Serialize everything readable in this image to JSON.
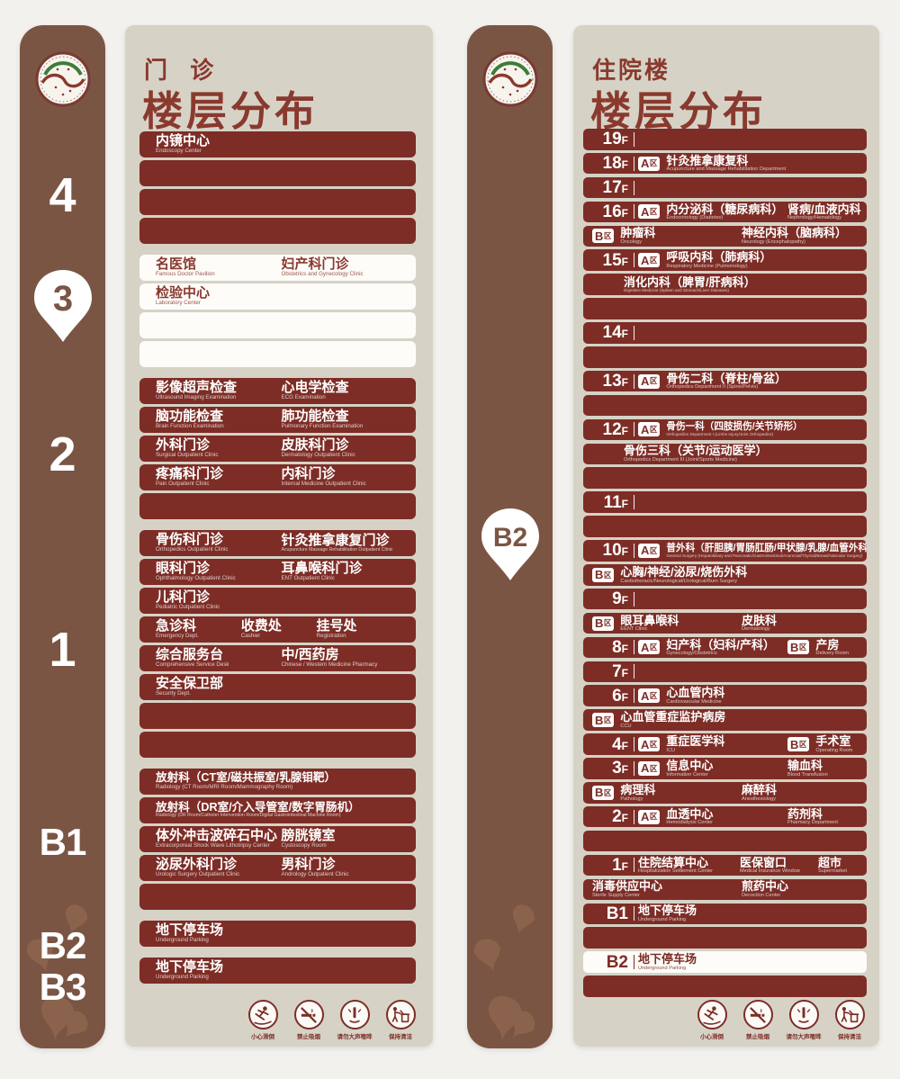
{
  "colors": {
    "maroon_row": "#7d2d26",
    "title_maroon": "#8a392e",
    "sidebar_brown": "#7b5543",
    "board_beige": "#d6d2c6",
    "highlight_row": "#fdfcf8"
  },
  "legend_icons": [
    {
      "icon": "caution-slip-icon",
      "label": "小心滑倒"
    },
    {
      "icon": "no-smoking-icon",
      "label": "禁止吸烟"
    },
    {
      "icon": "quiet-please-icon",
      "label": "请勿大声喧哗"
    },
    {
      "icon": "keep-clean-icon",
      "label": "保持清洁"
    }
  ],
  "panels": [
    {
      "name": "outpatient",
      "title_top": "门 诊",
      "title_main": "楼层分布",
      "sidebar": {
        "floors": [
          {
            "label": "4"
          },
          {
            "label": "3",
            "pin": true
          },
          {
            "label": "2"
          },
          {
            "label": "1"
          },
          {
            "label": "B1"
          },
          {
            "label": "B2"
          },
          {
            "label": "B3"
          }
        ]
      },
      "sections": [
        {
          "floor": "4",
          "style": "dark",
          "rows": [
            {
              "cells": [
                {
                  "zh": "内镜中心",
                  "en": "Endoscopy Center"
                }
              ]
            },
            {
              "cells": []
            },
            {
              "cells": []
            },
            {
              "cells": []
            }
          ]
        },
        {
          "floor": "3",
          "style": "light",
          "rows": [
            {
              "cells": [
                {
                  "zh": "名医馆",
                  "en": "Famous Doctor Pavilion"
                },
                {
                  "zh": "妇产科门诊",
                  "en": "Obstetrics and Gynecology Clinic"
                }
              ]
            },
            {
              "cells": [
                {
                  "zh": "检验中心",
                  "en": "Laboratory Center"
                }
              ]
            },
            {
              "cells": []
            },
            {
              "cells": []
            }
          ]
        },
        {
          "floor": "2",
          "style": "dark",
          "rows": [
            {
              "cells": [
                {
                  "zh": "影像超声检查",
                  "en": "Ultrasound Imaging Examination"
                },
                {
                  "zh": "心电学检查",
                  "en": "ECG Examination"
                }
              ]
            },
            {
              "cells": [
                {
                  "zh": "脑功能检查",
                  "en": "Brain Function Examination"
                },
                {
                  "zh": "肺功能检查",
                  "en": "Pulmonary Function Examination"
                }
              ]
            },
            {
              "cells": [
                {
                  "zh": "外科门诊",
                  "en": "Surgical Outpatient Clinic"
                },
                {
                  "zh": "皮肤科门诊",
                  "en": "Dermatology Outpatient Clinic"
                }
              ]
            },
            {
              "cells": [
                {
                  "zh": "疼痛科门诊",
                  "en": "Pain Outpatient Clinic"
                },
                {
                  "zh": "内科门诊",
                  "en": "Internal Medicine Outpatient Clinic"
                }
              ]
            },
            {
              "cells": []
            }
          ]
        },
        {
          "floor": "1",
          "style": "dark",
          "rows": [
            {
              "cells": [
                {
                  "zh": "骨伤科门诊",
                  "en": "Orthopedics Outpatient Clinic"
                },
                {
                  "zh": "针灸推拿康复门诊",
                  "en": "Acupuncture Massage Rehabilitation Outpatient Clinic"
                }
              ]
            },
            {
              "cells": [
                {
                  "zh": "眼科门诊",
                  "en": "Ophthalmology Outpatient Clinic"
                },
                {
                  "zh": "耳鼻喉科门诊",
                  "en": "ENT Outpatient Clinic"
                }
              ]
            },
            {
              "cells": [
                {
                  "zh": "儿科门诊",
                  "en": "Pediatric Outpatient Clinic"
                }
              ]
            },
            {
              "cells": [
                {
                  "zh": "急诊科",
                  "en": "Emergency Dept."
                },
                {
                  "zh": "收费处",
                  "en": "Cashier"
                },
                {
                  "zh": "挂号处",
                  "en": "Registration"
                }
              ]
            },
            {
              "cells": [
                {
                  "zh": "综合服务台",
                  "en": "Comprehensive Service Desk"
                },
                {
                  "zh": "中/西药房",
                  "en": "Chinese / Western Medicine Pharmacy"
                }
              ]
            },
            {
              "cells": [
                {
                  "zh": "安全保卫部",
                  "en": "Security Dept."
                }
              ]
            },
            {
              "cells": []
            },
            {
              "cells": []
            }
          ]
        },
        {
          "floor": "B1",
          "style": "dark",
          "rows": [
            {
              "cells": [
                {
                  "zh": "放射科（CT室/磁共振室/乳腺钼靶）",
                  "en": "Radiology (CT Room/MRI Room/Mammography Room)"
                }
              ]
            },
            {
              "cells": [
                {
                  "zh": "放射科（DR室/介入导管室/数字胃肠机）",
                  "en": "Radiology (DR Room/Catheter Intervention Room/Digital Gastrointestinal Machine Room)"
                }
              ]
            },
            {
              "cells": [
                {
                  "zh": "体外冲击波碎石中心",
                  "en": "Extracorporeal Shock Wave Lithotripsy Center"
                },
                {
                  "zh": "膀胱镜室",
                  "en": "Cystoscopy Room"
                }
              ]
            },
            {
              "cells": [
                {
                  "zh": "泌尿外科门诊",
                  "en": "Urologic Surgery Outpatient Clinic"
                },
                {
                  "zh": "男科门诊",
                  "en": "Andrology Outpatient Clinic"
                }
              ]
            },
            {
              "cells": []
            }
          ]
        },
        {
          "floor": "B2",
          "style": "dark",
          "rows": [
            {
              "cells": [
                {
                  "zh": "地下停车场",
                  "en": "Underground Parking"
                }
              ]
            }
          ]
        },
        {
          "floor": "B3",
          "style": "dark",
          "rows": [
            {
              "cells": [
                {
                  "zh": "地下停车场",
                  "en": "Underground Parking"
                }
              ]
            }
          ]
        }
      ]
    },
    {
      "name": "inpatient",
      "title_top": "住院楼",
      "title_main": "楼层分布",
      "sidebar": {
        "pin_label": "B2"
      },
      "rows": [
        {
          "floor": "19F",
          "cells": []
        },
        {
          "floor": "18F",
          "cells": [
            {
              "zone": "A区",
              "zh": "针灸推拿康复科",
              "en": "Acupuncture and Massage Rehabilitation Department"
            }
          ]
        },
        {
          "floor": "17F",
          "cells": []
        },
        {
          "floor": "16F",
          "cells": [
            {
              "zone": "A区",
              "zh": "内分泌科（糖尿病科）",
              "en": "Endocrinology (Diabetes)"
            },
            {
              "zh": "肾病/血液内科",
              "en": "Nephrology/Hematology"
            }
          ]
        },
        {
          "cells": [
            {
              "zone": "B区",
              "zh": "肿瘤科",
              "en": "Oncology"
            },
            {
              "zh": "神经内科（脑病科）",
              "en": "Neurology (Encephalopathy)"
            }
          ]
        },
        {
          "floor": "15F",
          "cells": [
            {
              "zone": "A区",
              "zh": "呼吸内科（肺病科）",
              "en": "Respiratory Medicine (Pulmonology)"
            }
          ]
        },
        {
          "indent": true,
          "cells": [
            {
              "zh": "消化内科（脾胃/肝病科）",
              "en": "Digestive Medicine (Spleen and Stomach/Liver Diseases)"
            }
          ]
        },
        {
          "cells": []
        },
        {
          "floor": "14F",
          "cells": []
        },
        {
          "cells": []
        },
        {
          "floor": "13F",
          "cells": [
            {
              "zone": "A区",
              "zh": "骨伤二科（脊柱/骨盆）",
              "en": "Orthopedics Department II (Spine/Pelvis)"
            }
          ]
        },
        {
          "cells": []
        },
        {
          "floor": "12F",
          "cells": [
            {
              "zone": "A区",
              "zh": "骨伤一科（四肢损伤/关节矫形）",
              "en": "Orthopedics Department I (Limbs Injury/Joint Orthopedics)"
            }
          ]
        },
        {
          "indent": true,
          "cells": [
            {
              "zh": "骨伤三科（关节/运动医学）",
              "en": "Orthopedics Department III (Joint/Sports Medicine)"
            }
          ]
        },
        {
          "cells": []
        },
        {
          "floor": "11F",
          "cells": []
        },
        {
          "cells": []
        },
        {
          "floor": "10F",
          "cells": [
            {
              "zone": "A区",
              "zh": "普外科（肝胆胰/胃肠肛肠/甲状腺/乳腺/血管外科）",
              "en": "General Surgery (Hepatobiliary and Pancreatic/Gastrointestinal/Anorectal/Thyroid/Breast/Vascular Surgery)"
            }
          ]
        },
        {
          "cells": [
            {
              "zone": "B区",
              "zh": "心胸/神经/泌尿/烧伤外科",
              "en": "Cardiothoracic/Neurological/Urological/Burn Surgery"
            }
          ]
        },
        {
          "floor": "9F",
          "cells": []
        },
        {
          "cells": [
            {
              "zone": "B区",
              "zh": "眼耳鼻喉科",
              "en": "EENT Clinic"
            },
            {
              "zh": "皮肤科",
              "en": "Dermatology"
            }
          ]
        },
        {
          "floor": "8F",
          "cells": [
            {
              "zone": "A区",
              "zh": "妇产科（妇科/产科）",
              "en": "Gynecology/Obstetrics"
            },
            {
              "zone": "B区",
              "zh": "产房",
              "en": "Delivery Room"
            }
          ]
        },
        {
          "floor": "7F",
          "cells": []
        },
        {
          "floor": "6F",
          "cells": [
            {
              "zone": "A区",
              "zh": "心血管内科",
              "en": "Cardiovascular Medicine"
            }
          ]
        },
        {
          "cells": [
            {
              "zone": "B区",
              "zh": "心血管重症监护病房",
              "en": "CCU"
            }
          ]
        },
        {
          "floor": "4F",
          "cells": [
            {
              "zone": "A区",
              "zh": "重症医学科",
              "en": "ICU"
            },
            {
              "zone": "B区",
              "zh": "手术室",
              "en": "Operating Room"
            }
          ]
        },
        {
          "floor": "3F",
          "cells": [
            {
              "zone": "A区",
              "zh": "信息中心",
              "en": "Information Center"
            },
            {
              "zh": "输血科",
              "en": "Blood Transfusion"
            }
          ]
        },
        {
          "cells": [
            {
              "zone": "B区",
              "zh": "病理科",
              "en": "Pathology"
            },
            {
              "zh": "麻醉科",
              "en": "Anesthesiology"
            }
          ]
        },
        {
          "floor": "2F",
          "cells": [
            {
              "zone": "A区",
              "zh": "血透中心",
              "en": "Hemodialysis Center"
            },
            {
              "zh": "药剂科",
              "en": "Pharmacy Department"
            }
          ]
        },
        {
          "cells": []
        },
        {
          "floor": "1F",
          "cells": [
            {
              "zh": "住院结算中心",
              "en": "Hospitalization Settlement Center"
            },
            {
              "zh": "医保窗口",
              "en": "Medical Insurance Window"
            },
            {
              "zh": "超市",
              "en": "Supermarket"
            }
          ]
        },
        {
          "cells": [
            {
              "zh": "消毒供应中心",
              "en": "Sterile Supply Center"
            },
            {
              "zh": "煎药中心",
              "en": "Decoction Center"
            }
          ]
        },
        {
          "floor": "B1",
          "cells": [
            {
              "zh": "地下停车场",
              "en": "Underground Parking"
            }
          ]
        },
        {
          "cells": []
        },
        {
          "floor": "B2",
          "highlight": true,
          "cells": [
            {
              "zh": "地下停车场",
              "en": "Underground Parking"
            }
          ]
        },
        {
          "cells": []
        }
      ]
    }
  ]
}
